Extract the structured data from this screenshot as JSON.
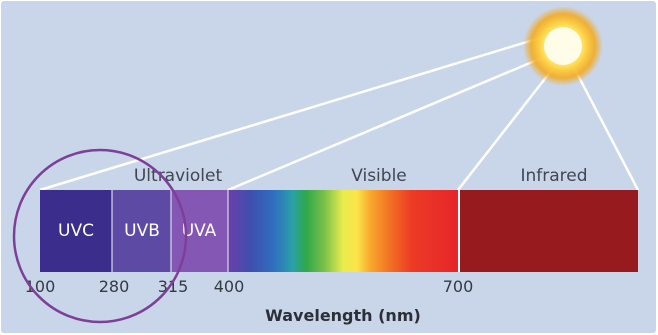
{
  "colors": {
    "background": "#c9d6ea",
    "uvc": "#3a2d8c",
    "uvb": "#5c4aa5",
    "uva": "#8457b4",
    "infrared": "#961a1e",
    "circle": "#7d3f98",
    "sun_core": "#fffde8",
    "sun_glow": "#f7b31a"
  },
  "region_labels": {
    "ultraviolet": "Ultraviolet",
    "visible": "Visible",
    "infrared": "Infrared"
  },
  "bands": {
    "uvc": "UVC",
    "uvb": "UVB",
    "uva": "UVA"
  },
  "ticks": {
    "t100": "100",
    "t280": "280",
    "t315": "315",
    "t400": "400",
    "t700": "700"
  },
  "axis_label": "Wavelength (nm)",
  "icons": {
    "sun": "sun-icon",
    "highlight": "highlight-circle"
  }
}
